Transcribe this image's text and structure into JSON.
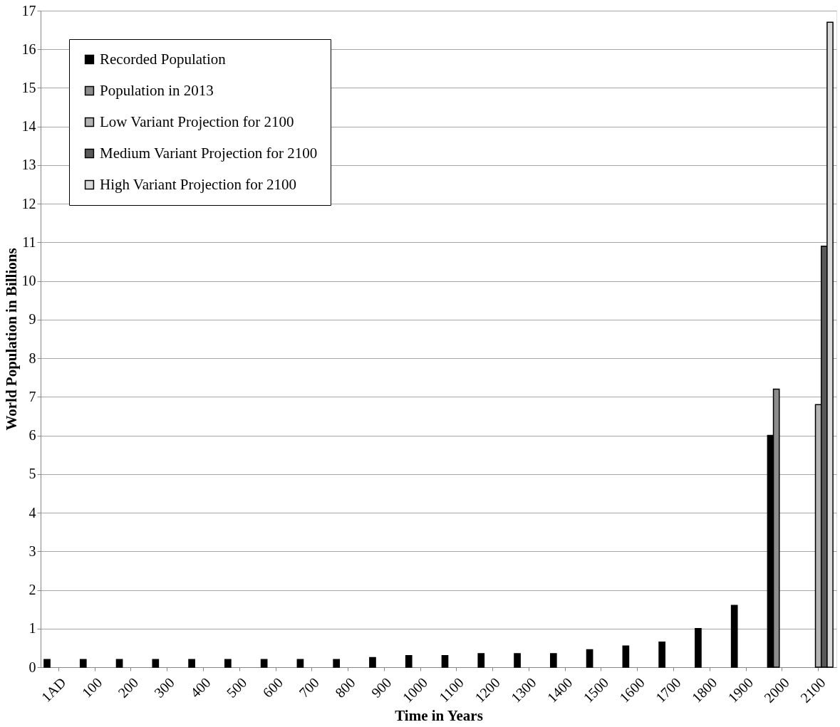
{
  "chart_data": {
    "type": "bar",
    "xlabel": "Time in Years",
    "ylabel": "World  Population in Billions",
    "categories": [
      "1AD",
      "100",
      "200",
      "300",
      "400",
      "500",
      "600",
      "700",
      "800",
      "900",
      "1000",
      "1100",
      "1200",
      "1300",
      "1400",
      "1500",
      "1600",
      "1700",
      "1800",
      "1900",
      "2000",
      "2100"
    ],
    "series": [
      {
        "name": "Recorded Population",
        "color": "#000000",
        "values": [
          0.2,
          0.2,
          0.2,
          0.2,
          0.2,
          0.2,
          0.2,
          0.2,
          0.2,
          0.25,
          0.3,
          0.3,
          0.35,
          0.35,
          0.35,
          0.45,
          0.55,
          0.65,
          1.0,
          1.6,
          6.0,
          null
        ]
      },
      {
        "name": "Population in 2013",
        "color": "#8c8c8c",
        "values": [
          null,
          null,
          null,
          null,
          null,
          null,
          null,
          null,
          null,
          null,
          null,
          null,
          null,
          null,
          null,
          null,
          null,
          null,
          null,
          null,
          7.2,
          null
        ]
      },
      {
        "name": "Low Variant Projection for 2100",
        "color": "#b3b3b3",
        "values": [
          null,
          null,
          null,
          null,
          null,
          null,
          null,
          null,
          null,
          null,
          null,
          null,
          null,
          null,
          null,
          null,
          null,
          null,
          null,
          null,
          null,
          6.8
        ]
      },
      {
        "name": "Medium Variant Projection for 2100",
        "color": "#595959",
        "values": [
          null,
          null,
          null,
          null,
          null,
          null,
          null,
          null,
          null,
          null,
          null,
          null,
          null,
          null,
          null,
          null,
          null,
          null,
          null,
          null,
          null,
          10.9
        ]
      },
      {
        "name": "High Variant Projection for 2100",
        "color": "#d9d9d9",
        "values": [
          null,
          null,
          null,
          null,
          null,
          null,
          null,
          null,
          null,
          null,
          null,
          null,
          null,
          null,
          null,
          null,
          null,
          null,
          null,
          null,
          null,
          16.7
        ]
      }
    ],
    "ylim": [
      0,
      17
    ],
    "yticks": [
      0,
      1,
      2,
      3,
      4,
      5,
      6,
      7,
      8,
      9,
      10,
      11,
      12,
      13,
      14,
      15,
      16,
      17
    ],
    "grid": "y",
    "legend": "top left"
  }
}
